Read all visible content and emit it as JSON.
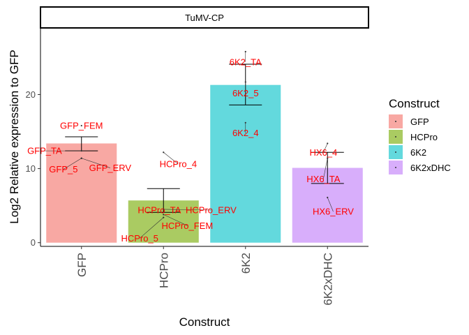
{
  "chart_data": {
    "type": "bar",
    "facet_title": "TuMV-CP",
    "xlabel": "Construct",
    "ylabel": "Log2 Relative expression to GFP",
    "categories": [
      "GFP",
      "HCPro",
      "6K2",
      "6K2xDHC"
    ],
    "values": [
      13.4,
      5.7,
      21.3,
      10.1
    ],
    "error_bars": [
      {
        "low": 12.4,
        "high": 14.3
      },
      {
        "low": 4.1,
        "high": 7.3
      },
      {
        "low": 18.6,
        "high": 24.1
      },
      {
        "low": 8.0,
        "high": 12.2
      }
    ],
    "colors": [
      "#F8A8A3",
      "#AACB62",
      "#63D9DD",
      "#D8AEFB"
    ],
    "ylim": [
      -0.5,
      29
    ],
    "y_ticks": [
      0,
      10,
      20
    ],
    "grid": false,
    "legend": {
      "title": "Construct",
      "position": "right",
      "entries": [
        "GFP",
        "HCPro",
        "6K2",
        "6K2xDHC"
      ]
    },
    "points": [
      {
        "category": "GFP",
        "y": 15.8,
        "label": "GFP_FEM",
        "dx": 0,
        "dy": 0
      },
      {
        "category": "GFP",
        "y": 12.4,
        "label": "GFP_TA",
        "dx": -0.45,
        "dy": 0
      },
      {
        "category": "GFP",
        "y": 11.4,
        "label": "GFP_5",
        "dx": -0.22,
        "dy": -1.5
      },
      {
        "category": "GFP",
        "y": 11.4,
        "label": "GFP_ERV",
        "dx": 0.35,
        "dy": -1.3
      },
      {
        "category": "HCPro",
        "y": 12.2,
        "label": "HCPro_4",
        "dx": 0.18,
        "dy": -1.6
      },
      {
        "category": "HCPro",
        "y": 4.5,
        "label": "HCPro_TA",
        "dx": -0.05,
        "dy": -0.1
      },
      {
        "category": "HCPro",
        "y": 4.5,
        "label": "HCPro_ERV",
        "dx": 0.58,
        "dy": -0.1
      },
      {
        "category": "HCPro",
        "y": 3.8,
        "label": "HCPro_FEM",
        "dx": 0.29,
        "dy": -1.5
      },
      {
        "category": "HCPro",
        "y": 3.4,
        "label": "HCPro_5",
        "dx": -0.29,
        "dy": -2.8
      },
      {
        "category": "6K2",
        "y": 25.8,
        "label": "6K2_TA",
        "dx": 0,
        "dy": -1.4
      },
      {
        "category": "6K2",
        "y": 21.7,
        "label": "6K2_5",
        "dx": 0,
        "dy": -1.5
      },
      {
        "category": "6K2",
        "y": 16.2,
        "label": "6K2_4",
        "dx": 0,
        "dy": -1.4
      },
      {
        "category": "6K2xDHC",
        "y": 13.4,
        "label": "HX6_4",
        "dx": -0.05,
        "dy": -1.2
      },
      {
        "category": "6K2xDHC",
        "y": 11.4,
        "label": "HX6_TA",
        "dx": -0.05,
        "dy": -2.8
      },
      {
        "category": "6K2xDHC",
        "y": 6.1,
        "label": "HX6_ERV",
        "dx": 0.07,
        "dy": -1.9
      }
    ]
  }
}
